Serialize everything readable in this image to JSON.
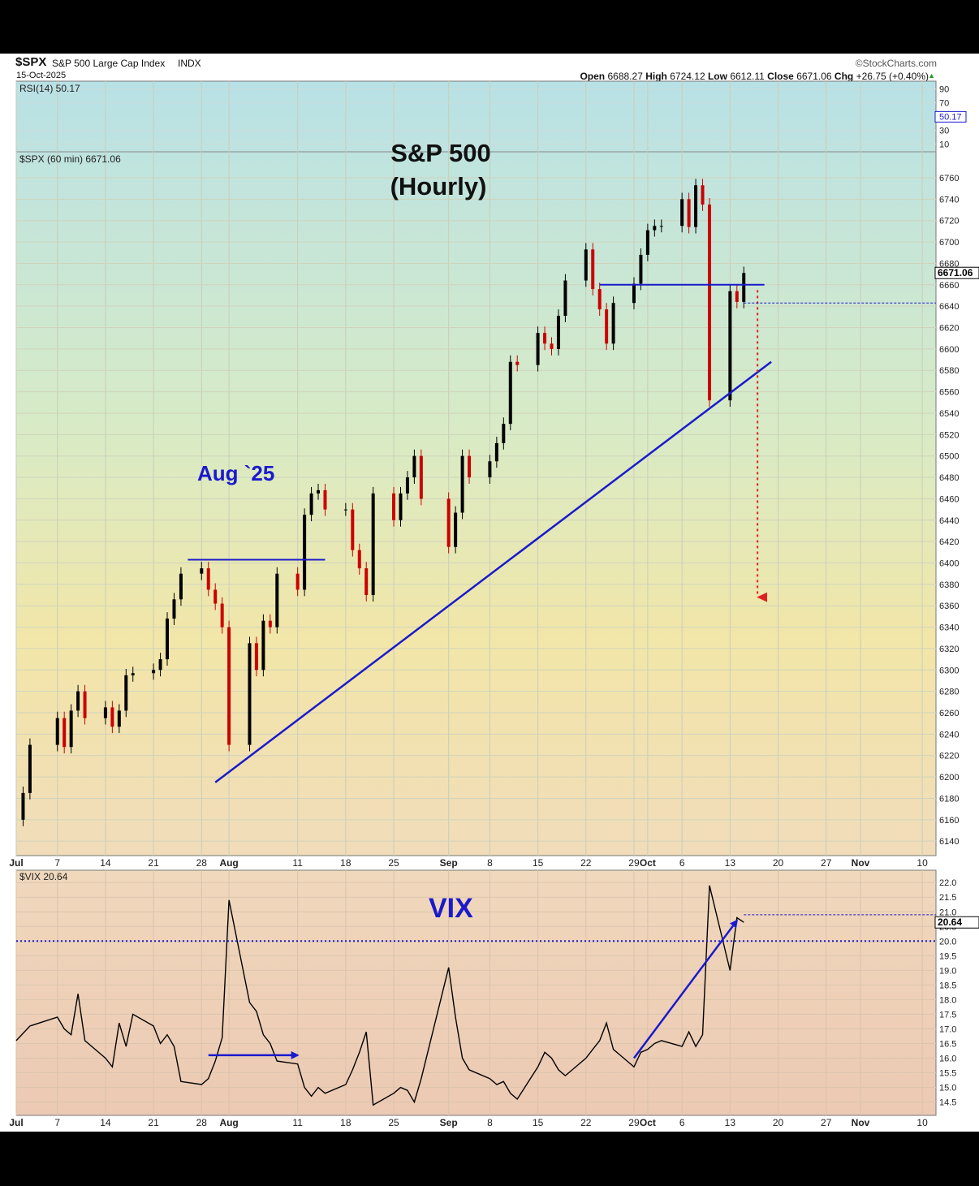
{
  "header": {
    "symbol": "$SPX",
    "name": "S&P 500 Large Cap Index",
    "exchange": "INDX",
    "date": "15-Oct-2025",
    "brand": "©StockCharts.com",
    "quote": [
      {
        "label": "Open",
        "value": "6688.27"
      },
      {
        "label": "High",
        "value": "6724.12"
      },
      {
        "label": "Low",
        "value": "6612.11"
      },
      {
        "label": "Close",
        "value": "6671.06"
      },
      {
        "label": "Chg",
        "value": "+26.75 (+0.40%)"
      }
    ]
  },
  "chart_data": [
    {
      "type": "line",
      "panel": "rsi",
      "legend": "RSI(14) 50.17",
      "ticks": [
        "90",
        "70",
        "50.17",
        "30",
        "10"
      ],
      "tick_values": [
        90,
        70,
        50.17,
        30,
        10
      ],
      "ylim": [
        0,
        100
      ],
      "last_value": 50.17,
      "last_label": "50.17",
      "color": "#1a1acc"
    },
    {
      "type": "candlestick",
      "panel": "price",
      "legend": "$SPX (60 min) 6671.06",
      "title_lines": [
        "S&P 500",
        "(Hourly)"
      ],
      "annotation": "Aug `25",
      "y_ticks": [
        "6760",
        "6740",
        "6720",
        "6700",
        "6680",
        "6660",
        "6640",
        "6620",
        "6600",
        "6580",
        "6560",
        "6540",
        "6520",
        "6500",
        "6480",
        "6460",
        "6440",
        "6420",
        "6400",
        "6380",
        "6360",
        "6340",
        "6320",
        "6300",
        "6280",
        "6260",
        "6240",
        "6220",
        "6200",
        "6180",
        "6160",
        "6140"
      ],
      "ylim": [
        6128,
        6782
      ],
      "last_value": 6671.06,
      "last_label": "6671.06",
      "x_labels": [
        "Jul",
        "7",
        "14",
        "21",
        "28",
        "Aug",
        "11",
        "18",
        "25",
        "Sep",
        "8",
        "15",
        "22",
        "29",
        "Oct",
        "6",
        "13",
        "20",
        "27",
        "Nov",
        "10"
      ],
      "x_dates": [
        "2025-07-01",
        "2025-07-07",
        "2025-07-14",
        "2025-07-21",
        "2025-07-28",
        "2025-08-01",
        "2025-08-11",
        "2025-08-18",
        "2025-08-25",
        "2025-09-02",
        "2025-09-08",
        "2025-09-15",
        "2025-09-22",
        "2025-09-29",
        "2025-10-01",
        "2025-10-06",
        "2025-10-13",
        "2025-10-20",
        "2025-10-27",
        "2025-11-01",
        "2025-11-10"
      ],
      "series": [
        {
          "points": [
            [
              "2025-07-01",
              6160
            ],
            [
              "2025-07-02",
              6185
            ],
            [
              "2025-07-03",
              6230
            ],
            [
              "2025-07-07",
              6255
            ],
            [
              "2025-07-08",
              6228
            ],
            [
              "2025-07-09",
              6262
            ],
            [
              "2025-07-10",
              6280
            ],
            [
              "2025-07-11",
              6255
            ],
            [
              "2025-07-14",
              6265
            ],
            [
              "2025-07-15",
              6247
            ],
            [
              "2025-07-16",
              6262
            ],
            [
              "2025-07-17",
              6295
            ],
            [
              "2025-07-18",
              6297
            ],
            [
              "2025-07-21",
              6300
            ],
            [
              "2025-07-22",
              6310
            ],
            [
              "2025-07-23",
              6348
            ],
            [
              "2025-07-24",
              6366
            ],
            [
              "2025-07-25",
              6390
            ],
            [
              "2025-07-28",
              6395
            ],
            [
              "2025-07-29",
              6375
            ],
            [
              "2025-07-30",
              6362
            ],
            [
              "2025-07-31",
              6340
            ],
            [
              "2025-08-01",
              6230
            ],
            [
              "2025-08-04",
              6325
            ],
            [
              "2025-08-05",
              6300
            ],
            [
              "2025-08-06",
              6346
            ],
            [
              "2025-08-07",
              6340
            ],
            [
              "2025-08-08",
              6390
            ],
            [
              "2025-08-11",
              6375
            ],
            [
              "2025-08-12",
              6445
            ],
            [
              "2025-08-13",
              6465
            ],
            [
              "2025-08-14",
              6468
            ],
            [
              "2025-08-15",
              6450
            ],
            [
              "2025-08-18",
              6450
            ],
            [
              "2025-08-19",
              6412
            ],
            [
              "2025-08-20",
              6395
            ],
            [
              "2025-08-21",
              6370
            ],
            [
              "2025-08-22",
              6465
            ],
            [
              "2025-08-25",
              6440
            ],
            [
              "2025-08-26",
              6465
            ],
            [
              "2025-08-27",
              6480
            ],
            [
              "2025-08-28",
              6500
            ],
            [
              "2025-08-29",
              6460
            ],
            [
              "2025-09-02",
              6415
            ],
            [
              "2025-09-03",
              6447
            ],
            [
              "2025-09-04",
              6500
            ],
            [
              "2025-09-05",
              6480
            ],
            [
              "2025-09-08",
              6495
            ],
            [
              "2025-09-09",
              6512
            ],
            [
              "2025-09-10",
              6530
            ],
            [
              "2025-09-11",
              6588
            ],
            [
              "2025-09-12",
              6585
            ],
            [
              "2025-09-15",
              6615
            ],
            [
              "2025-09-16",
              6605
            ],
            [
              "2025-09-17",
              6600
            ],
            [
              "2025-09-18",
              6631
            ],
            [
              "2025-09-19",
              6664
            ],
            [
              "2025-09-22",
              6693
            ],
            [
              "2025-09-23",
              6656
            ],
            [
              "2025-09-24",
              6637
            ],
            [
              "2025-09-25",
              6605
            ],
            [
              "2025-09-26",
              6643
            ],
            [
              "2025-09-29",
              6661
            ],
            [
              "2025-09-30",
              6688
            ],
            [
              "2025-10-01",
              6711
            ],
            [
              "2025-10-02",
              6715
            ],
            [
              "2025-10-03",
              6715
            ],
            [
              "2025-10-06",
              6740
            ],
            [
              "2025-10-07",
              6714
            ],
            [
              "2025-10-08",
              6753
            ],
            [
              "2025-10-09",
              6735
            ],
            [
              "2025-10-10",
              6552
            ],
            [
              "2025-10-13",
              6654
            ],
            [
              "2025-10-14",
              6644
            ],
            [
              "2025-10-15",
              6671
            ]
          ]
        }
      ],
      "annotations": {
        "resistance_1": {
          "from": "2025-07-26",
          "to": "2025-08-15",
          "value": 6403
        },
        "resistance_2": {
          "from": "2025-09-24",
          "to": "2025-10-18",
          "value": 6660
        },
        "trendline": {
          "from": [
            "2025-07-30",
            6195
          ],
          "to": [
            "2025-10-19",
            6588
          ]
        },
        "projection": {
          "from": [
            "2025-10-17",
            6655
          ],
          "to": [
            "2025-10-17",
            6368
          ]
        },
        "close_level": 6643
      },
      "colors": {
        "up": "#000000",
        "down": "#cc0000",
        "lines": "#1a1acc",
        "projection": "#e02020"
      }
    },
    {
      "type": "line",
      "panel": "vix",
      "legend": "$VIX 20.64",
      "title": "VIX",
      "y_ticks": [
        "22.0",
        "21.5",
        "21.0",
        "20.5",
        "20.0",
        "19.5",
        "19.0",
        "18.5",
        "18.0",
        "17.5",
        "17.0",
        "16.5",
        "16.0",
        "15.5",
        "15.0",
        "14.5"
      ],
      "ylim": [
        14.1,
        22.2
      ],
      "last_value": 20.64,
      "last_label": "20.64",
      "reference_level": 20.0,
      "x_labels": [
        "Jul",
        "7",
        "14",
        "21",
        "28",
        "Aug",
        "11",
        "18",
        "25",
        "Sep",
        "8",
        "15",
        "22",
        "29",
        "Oct",
        "6",
        "13",
        "20",
        "27",
        "Nov",
        "10"
      ],
      "series": [
        {
          "points": [
            [
              "2025-07-01",
              16.6
            ],
            [
              "2025-07-03",
              17.1
            ],
            [
              "2025-07-07",
              17.4
            ],
            [
              "2025-07-08",
              17.0
            ],
            [
              "2025-07-09",
              16.8
            ],
            [
              "2025-07-10",
              18.2
            ],
            [
              "2025-07-11",
              16.6
            ],
            [
              "2025-07-14",
              16.0
            ],
            [
              "2025-07-15",
              15.7
            ],
            [
              "2025-07-16",
              17.2
            ],
            [
              "2025-07-17",
              16.4
            ],
            [
              "2025-07-18",
              17.5
            ],
            [
              "2025-07-21",
              17.1
            ],
            [
              "2025-07-22",
              16.5
            ],
            [
              "2025-07-23",
              16.8
            ],
            [
              "2025-07-24",
              16.4
            ],
            [
              "2025-07-25",
              15.2
            ],
            [
              "2025-07-28",
              15.1
            ],
            [
              "2025-07-29",
              15.3
            ],
            [
              "2025-07-30",
              15.9
            ],
            [
              "2025-07-31",
              16.7
            ],
            [
              "2025-08-01",
              21.4
            ],
            [
              "2025-08-04",
              17.9
            ],
            [
              "2025-08-05",
              17.6
            ],
            [
              "2025-08-06",
              16.8
            ],
            [
              "2025-08-07",
              16.5
            ],
            [
              "2025-08-08",
              15.9
            ],
            [
              "2025-08-11",
              15.8
            ],
            [
              "2025-08-12",
              15.0
            ],
            [
              "2025-08-13",
              14.7
            ],
            [
              "2025-08-14",
              15.0
            ],
            [
              "2025-08-15",
              14.8
            ],
            [
              "2025-08-18",
              15.1
            ],
            [
              "2025-08-19",
              15.6
            ],
            [
              "2025-08-20",
              16.2
            ],
            [
              "2025-08-21",
              16.9
            ],
            [
              "2025-08-22",
              14.4
            ],
            [
              "2025-08-25",
              14.8
            ],
            [
              "2025-08-26",
              15.0
            ],
            [
              "2025-08-27",
              14.9
            ],
            [
              "2025-08-28",
              14.5
            ],
            [
              "2025-08-29",
              15.3
            ],
            [
              "2025-09-02",
              19.1
            ],
            [
              "2025-09-03",
              17.4
            ],
            [
              "2025-09-04",
              16.0
            ],
            [
              "2025-09-05",
              15.6
            ],
            [
              "2025-09-08",
              15.3
            ],
            [
              "2025-09-09",
              15.1
            ],
            [
              "2025-09-10",
              15.2
            ],
            [
              "2025-09-11",
              14.8
            ],
            [
              "2025-09-12",
              14.6
            ],
            [
              "2025-09-15",
              15.7
            ],
            [
              "2025-09-16",
              16.2
            ],
            [
              "2025-09-17",
              16.0
            ],
            [
              "2025-09-18",
              15.6
            ],
            [
              "2025-09-19",
              15.4
            ],
            [
              "2025-09-22",
              16.0
            ],
            [
              "2025-09-23",
              16.3
            ],
            [
              "2025-09-24",
              16.6
            ],
            [
              "2025-09-25",
              17.2
            ],
            [
              "2025-09-26",
              16.3
            ],
            [
              "2025-09-29",
              15.7
            ],
            [
              "2025-09-30",
              16.2
            ],
            [
              "2025-10-01",
              16.3
            ],
            [
              "2025-10-02",
              16.5
            ],
            [
              "2025-10-03",
              16.6
            ],
            [
              "2025-10-06",
              16.4
            ],
            [
              "2025-10-07",
              16.9
            ],
            [
              "2025-10-08",
              16.4
            ],
            [
              "2025-10-09",
              16.8
            ],
            [
              "2025-10-10",
              21.9
            ],
            [
              "2025-10-13",
              19.0
            ],
            [
              "2025-10-14",
              20.8
            ],
            [
              "2025-10-15",
              20.64
            ]
          ]
        }
      ],
      "annotations": {
        "arrow_1": {
          "from": [
            "2025-07-29",
            16.1
          ],
          "to": [
            "2025-08-11",
            16.1
          ]
        },
        "arrow_2": {
          "from": [
            "2025-09-29",
            16.0
          ],
          "to": [
            "2025-10-14",
            20.7
          ]
        },
        "last_level": 20.9
      },
      "colors": {
        "line": "#000000",
        "arrows": "#1a1acc",
        "reference": "#1a1acc"
      }
    }
  ]
}
